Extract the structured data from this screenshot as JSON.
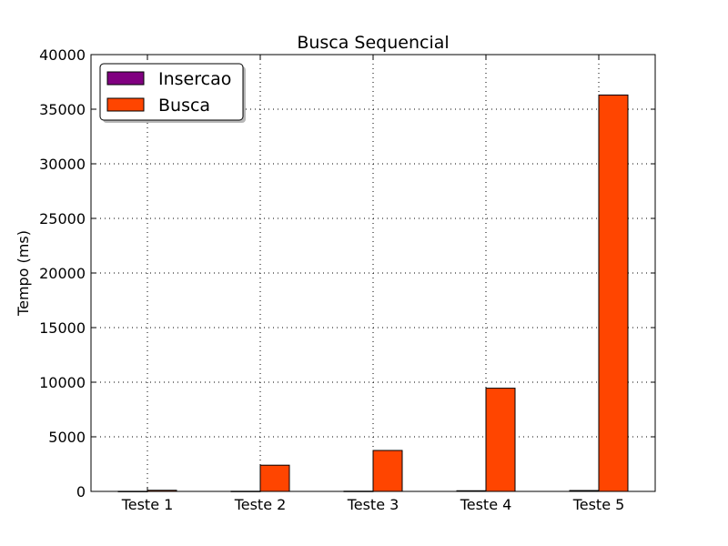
{
  "chart_data": {
    "type": "bar",
    "title": "Busca Sequencial",
    "xlabel": "",
    "ylabel": "Tempo (ms)",
    "categories": [
      "Teste 1",
      "Teste 2",
      "Teste 3",
      "Teste 4",
      "Teste 5"
    ],
    "series": [
      {
        "name": "Insercao",
        "color": "#800080",
        "values": [
          10,
          15,
          20,
          60,
          80
        ]
      },
      {
        "name": "Busca",
        "color": "#ff4500",
        "values": [
          100,
          2400,
          3750,
          9450,
          36300
        ]
      }
    ],
    "ylim": [
      0,
      40000
    ],
    "yticks": [
      "0",
      "5000",
      "10000",
      "15000",
      "20000",
      "25000",
      "30000",
      "35000",
      "40000"
    ],
    "ytick_values": [
      0,
      5000,
      10000,
      15000,
      20000,
      25000,
      30000,
      35000,
      40000
    ],
    "grid": true,
    "legend_position": "top-left"
  }
}
